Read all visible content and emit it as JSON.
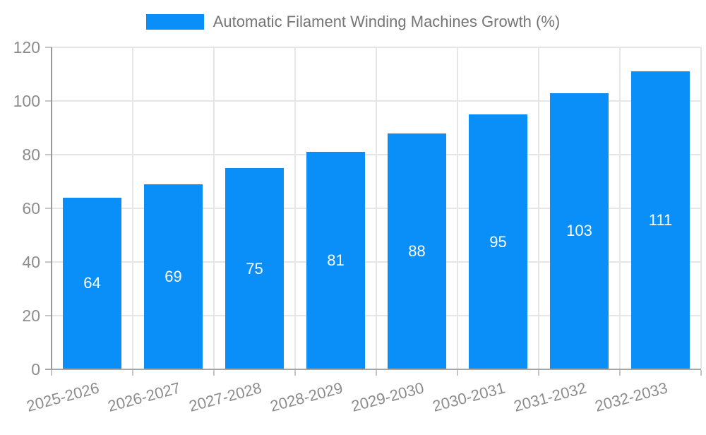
{
  "chart_data": {
    "type": "bar",
    "title": "Automatic Filament Winding Machines Growth (%)",
    "categories": [
      "2025-2026",
      "2026-2027",
      "2027-2028",
      "2028-2029",
      "2029-2030",
      "2030-2031",
      "2031-2032",
      "2032-2033"
    ],
    "values": [
      64,
      69,
      75,
      81,
      88,
      95,
      103,
      111
    ],
    "xlabel": "",
    "ylabel": "",
    "ylim": [
      0,
      120
    ],
    "ytick_step": 20,
    "ytick_labels": [
      "0",
      "20",
      "40",
      "60",
      "80",
      "100",
      "120"
    ],
    "grid": true,
    "legend_position": "top",
    "value_labels_inside_bars": true,
    "colors": {
      "bar": "#0a8ff9",
      "value_label": "#ffffff",
      "grid": "#e6e6e6",
      "y_axis": "#999999",
      "x_axis": "#a6a6a6",
      "tick": "#c6c6c6",
      "tick_label": "#8c8c8c",
      "legend_text": "#757575",
      "background": "#ffffff"
    }
  }
}
